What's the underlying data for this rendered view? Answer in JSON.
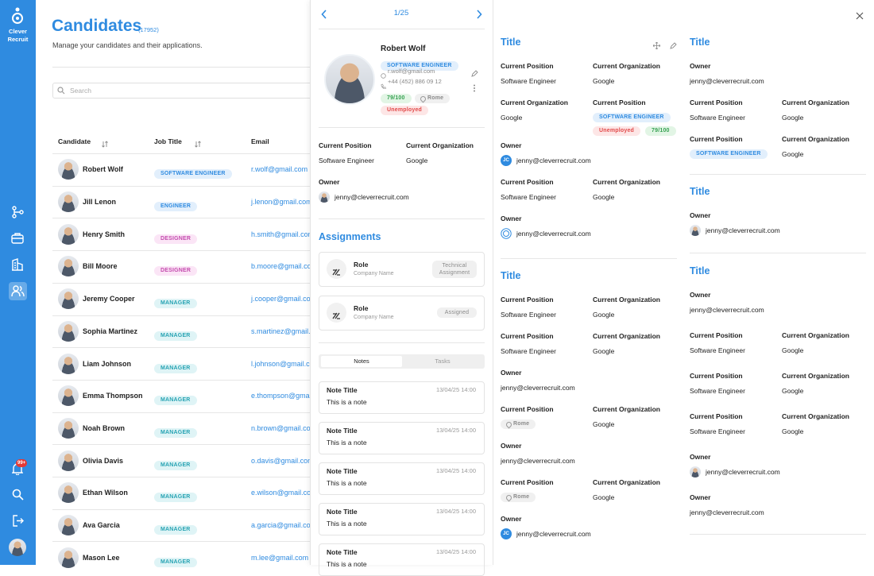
{
  "sidebar": {
    "brand": [
      "Clever",
      "Recruit"
    ],
    "badge": "99+"
  },
  "header": {
    "title": "Candidates",
    "count": "(17952)",
    "subtitle": "Manage your candidates and their applications.",
    "search": "Search"
  },
  "table": {
    "columns": [
      "Candidate",
      "Job Title",
      "Email"
    ],
    "rows": [
      {
        "name": "Robert Wolf",
        "job": "SOFTWARE ENGINEER",
        "email": "r.wolf@gmail.com"
      },
      {
        "name": "Jill Lenon",
        "job": "ENGINEER",
        "email": "j.lenon@gmail.com"
      },
      {
        "name": "Henry Smith",
        "job": "DESIGNER",
        "email": "h.smith@gmail.com"
      },
      {
        "name": "Bill Moore",
        "job": "DESIGNER",
        "email": "b.moore@gmail.com"
      },
      {
        "name": "Jeremy Cooper",
        "job": "MANAGER",
        "email": "j.cooper@gmail.com"
      },
      {
        "name": "Sophia Martinez",
        "job": "MANAGER",
        "email": "s.martinez@gmail.com"
      },
      {
        "name": "Liam Johnson",
        "job": "MANAGER",
        "email": "l.johnson@gmail.com"
      },
      {
        "name": "Emma Thompson",
        "job": "MANAGER",
        "email": "e.thompson@gmail.com"
      },
      {
        "name": "Noah Brown",
        "job": "MANAGER",
        "email": "n.brown@gmail.com"
      },
      {
        "name": "Olivia Davis",
        "job": "MANAGER",
        "email": "o.davis@gmail.com"
      },
      {
        "name": "Ethan Wilson",
        "job": "MANAGER",
        "email": "e.wilson@gmail.com"
      },
      {
        "name": "Ava Garcia",
        "job": "MANAGER",
        "email": "a.garcia@gmail.com"
      },
      {
        "name": "Mason Lee",
        "job": "MANAGER",
        "email": "m.lee@gmail.com"
      }
    ]
  },
  "detail": {
    "pager": "1/25",
    "name": "Robert Wolf",
    "job": "SOFTWARE ENGINEER",
    "email": "r.wolf@gmail.com",
    "phone": "+44 (452) 886 09 12",
    "score": "79/100",
    "location": "Rome",
    "status": "Unemployed",
    "fields": [
      {
        "label": "Current Position",
        "value": "Software Engineer"
      },
      {
        "label": "Current Organization",
        "value": "Google"
      },
      {
        "label": "Owner",
        "value": "jenny@cleverrecruit.com"
      }
    ],
    "assignments_title": "Assignments",
    "assignments": [
      {
        "role": "Role",
        "company": "Company Name",
        "status": "Technical Assignment"
      },
      {
        "role": "Role",
        "company": "Company Name",
        "status": "Assigned"
      }
    ],
    "tabs": [
      "Notes",
      "Tasks"
    ],
    "notes": [
      {
        "title": "Note Title",
        "date": "13/04/25 14:00",
        "body": "This is a note"
      },
      {
        "title": "Note Title",
        "date": "13/04/25 14:00",
        "body": "This is a note"
      },
      {
        "title": "Note Title",
        "date": "13/04/25 14:00",
        "body": "This is a note"
      },
      {
        "title": "Note Title",
        "date": "13/04/25 14:00",
        "body": "This is a note"
      },
      {
        "title": "Note Title",
        "date": "13/04/25 14:00",
        "body": "This is a note"
      }
    ]
  },
  "panel": {
    "columns": [
      {
        "sections": [
          {
            "title": "Title",
            "rows": [
              [
                {
                  "label": "Current Position",
                  "value": "Software Engineer"
                },
                {
                  "label": "Current Organization",
                  "value": "Google"
                }
              ],
              [
                {
                  "label": "Current Organization",
                  "value": "Google"
                },
                {
                  "label": "Current Position",
                  "tags": [
                    "SOFTWARE ENGINEER",
                    "Unemployed",
                    "79/100"
                  ]
                }
              ],
              [
                {
                  "label": "Owner",
                  "value": "jenny@cleverrecruit.com",
                  "initials": "JC"
                }
              ],
              [
                {
                  "label": "Current Position",
                  "value": "Software Engineer"
                },
                {
                  "label": "Current Organization",
                  "value": "Google"
                }
              ],
              [
                {
                  "label": "Owner",
                  "value": "jenny@cleverrecruit.com"
                }
              ]
            ]
          },
          {
            "title": "Title",
            "rows": [
              [
                {
                  "label": "Current Position",
                  "value": "Software Engineer"
                },
                {
                  "label": "Current Organization",
                  "value": "Google"
                }
              ],
              [
                {
                  "label": "Current Position",
                  "value": "Software Engineer"
                },
                {
                  "label": "Current Organization",
                  "value": "Google"
                }
              ],
              [
                {
                  "label": "Owner",
                  "value": "jenny@cleverrecruit.com"
                }
              ],
              [
                {
                  "label": "Current Position",
                  "tags": [
                    "Rome"
                  ]
                },
                {
                  "label": "Current Organization",
                  "value": "Google"
                }
              ],
              [
                {
                  "label": "Owner",
                  "value": "jenny@cleverrecruit.com"
                }
              ],
              [
                {
                  "label": "Current Position",
                  "tags": [
                    "Rome"
                  ]
                },
                {
                  "label": "Current Organization",
                  "value": "Google"
                }
              ],
              [
                {
                  "label": "Owner",
                  "value": "jenny@cleverrecruit.com",
                  "initials": "JC"
                }
              ]
            ]
          }
        ]
      },
      {
        "sections": [
          {
            "title": "Title",
            "rows": [
              [
                {
                  "label": "Owner",
                  "value": "jenny@cleverrecruit.com"
                }
              ],
              [
                {
                  "label": "Current Position",
                  "value": "Software Engineer"
                },
                {
                  "label": "Current Organization",
                  "value": "Google"
                }
              ],
              [
                {
                  "label": "Current Position",
                  "tags": [
                    "SOFTWARE ENGINEER"
                  ]
                },
                {
                  "label": "Current Organization",
                  "value": "Google"
                }
              ]
            ]
          },
          {
            "title": "Title",
            "rows": [
              [
                {
                  "label": "Owner",
                  "value": "jenny@cleverrecruit.com"
                }
              ]
            ]
          },
          {
            "title": "Title",
            "rows": [
              [
                {
                  "label": "Owner",
                  "value": "jenny@cleverrecruit.com"
                }
              ],
              [
                {
                  "label": "Current Position",
                  "value": "Software Engineer"
                },
                {
                  "label": "Current Organization",
                  "value": "Google"
                }
              ],
              [
                {
                  "label": "Current Position",
                  "value": "Software Engineer"
                },
                {
                  "label": "Current Organization",
                  "value": "Google"
                }
              ],
              [
                {
                  "label": "Current Position",
                  "value": "Software Engineer"
                },
                {
                  "label": "Current Organization",
                  "value": "Google"
                }
              ],
              [
                {
                  "label": "Owner",
                  "value": "jenny@cleverrecruit.com"
                }
              ],
              [
                {
                  "label": "Owner",
                  "value": "jenny@cleverrecruit.com"
                }
              ]
            ]
          }
        ]
      }
    ]
  }
}
